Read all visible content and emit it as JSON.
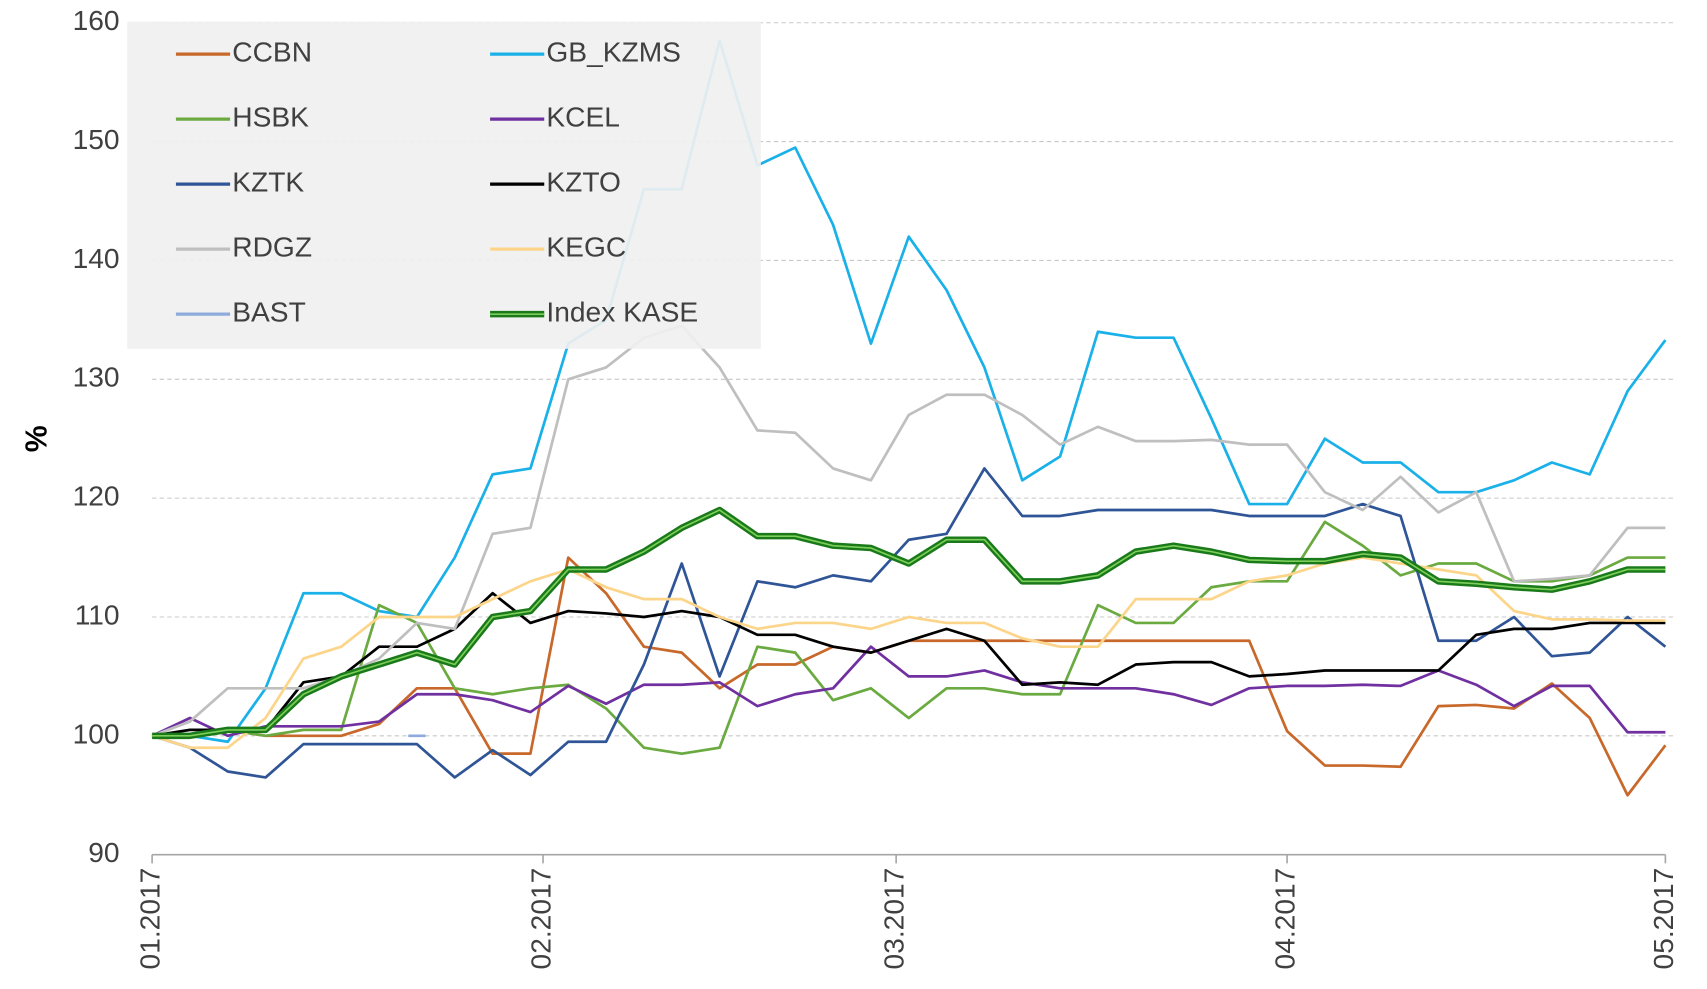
{
  "chart_data": {
    "type": "line",
    "y_label": "%",
    "x": [
      0,
      3,
      6,
      9,
      12,
      15,
      18,
      21,
      24,
      27,
      30,
      33,
      36,
      39,
      42,
      45,
      48,
      51,
      54,
      57,
      60,
      63,
      66,
      69,
      72,
      75,
      78,
      81,
      84,
      87,
      90,
      93,
      96,
      99,
      102,
      105,
      108,
      111,
      114,
      117,
      120
    ],
    "xlim": [
      0,
      120
    ],
    "xticks": [
      {
        "value": 0,
        "label": "01.2017"
      },
      {
        "value": 31,
        "label": "02.2017"
      },
      {
        "value": 59,
        "label": "03.2017"
      },
      {
        "value": 90,
        "label": "04.2017"
      },
      {
        "value": 120,
        "label": "05.2017"
      }
    ],
    "ylim": [
      90,
      160
    ],
    "yticks": [
      90,
      100,
      110,
      120,
      130,
      140,
      150,
      160
    ],
    "grid": true,
    "legend": "upper left",
    "series": [
      {
        "name": "CCBN",
        "color": "#c8682a",
        "values": [
          100,
          100,
          100.5,
          100,
          100,
          100,
          101,
          104,
          104,
          98.5,
          98.5,
          115,
          112,
          107.5,
          107,
          104,
          106,
          106,
          107.5,
          107,
          108,
          108,
          108,
          108,
          108,
          108,
          108,
          108,
          108,
          108,
          100.4,
          97.5,
          97.5,
          97.4,
          102.5,
          102.6,
          102.3,
          104.4,
          101.5,
          95,
          99.2
        ]
      },
      {
        "name": "GB_KZMS",
        "color": "#1ab0e8",
        "values": [
          100,
          100,
          99.5,
          104,
          112,
          112,
          110.5,
          110,
          115,
          122,
          122.5,
          133,
          135,
          146,
          146,
          158.5,
          148,
          149.5,
          143,
          133,
          142,
          137.5,
          131,
          121.5,
          123.5,
          134,
          133.5,
          133.5,
          126.7,
          119.5,
          119.5,
          125,
          123,
          123,
          120.5,
          120.5,
          121.5,
          123,
          122,
          129,
          133.3
        ]
      },
      {
        "name": "HSBK",
        "color": "#6aaa40",
        "values": [
          100,
          100,
          100.5,
          100,
          100.5,
          100.5,
          111,
          109.5,
          104,
          103.5,
          104,
          104.3,
          102.3,
          99,
          98.5,
          99,
          107.5,
          107,
          103,
          104,
          101.5,
          104,
          104,
          103.5,
          103.5,
          111,
          109.5,
          109.5,
          112.5,
          113,
          113,
          118,
          116,
          113.5,
          114.5,
          114.5,
          113,
          113,
          113.5,
          115,
          115
        ]
      },
      {
        "name": "KCEL",
        "color": "#7030a0",
        "values": [
          100,
          101.5,
          100,
          100.8,
          100.8,
          100.8,
          101.2,
          103.5,
          103.5,
          103,
          102,
          104.2,
          102.7,
          104.3,
          104.3,
          104.5,
          102.5,
          103.5,
          104,
          107.5,
          105,
          105,
          105.5,
          104.5,
          104,
          104,
          104,
          103.5,
          102.6,
          104,
          104.2,
          104.2,
          104.3,
          104.2,
          105.5,
          104.3,
          102.5,
          104.2,
          104.2,
          100.3,
          100.3
        ]
      },
      {
        "name": "KZTK",
        "color": "#2f5597",
        "values": [
          100,
          99,
          97,
          96.5,
          99.3,
          99.3,
          99.3,
          99.3,
          96.5,
          98.8,
          96.7,
          99.5,
          99.5,
          106,
          114.5,
          105,
          113,
          112.5,
          113.5,
          113,
          116.5,
          117,
          122.5,
          118.5,
          118.5,
          119,
          119,
          119,
          119,
          118.5,
          118.5,
          118.5,
          119.5,
          118.5,
          108,
          108,
          110,
          106.7,
          107,
          110,
          107.5
        ]
      },
      {
        "name": "KZTO",
        "color": "#000000",
        "values": [
          100,
          100.5,
          100.5,
          100.5,
          104.5,
          105,
          107.5,
          107.5,
          109,
          112,
          109.5,
          110.5,
          110.3,
          110,
          110.5,
          110,
          108.5,
          108.5,
          107.5,
          107,
          108,
          109,
          108,
          104.3,
          104.5,
          104.3,
          106,
          106.2,
          106.2,
          105,
          105.2,
          105.5,
          105.5,
          105.5,
          105.5,
          108.5,
          109,
          109,
          109.5,
          109.5,
          109.5
        ]
      },
      {
        "name": "RDGZ",
        "color": "#bfbfbf",
        "values": [
          100,
          101.2,
          104,
          104,
          104,
          105,
          106.5,
          109.5,
          109,
          117,
          117.5,
          130,
          131,
          133.5,
          134.5,
          131,
          125.7,
          125.5,
          122.5,
          121.5,
          127,
          128.7,
          128.7,
          127,
          124.5,
          126,
          124.8,
          124.8,
          124.9,
          124.5,
          124.5,
          120.5,
          119,
          121.8,
          118.8,
          120.5,
          113,
          113.2,
          113.5,
          117.5,
          117.5
        ]
      },
      {
        "name": "KEGC",
        "color": "#fdd58a",
        "values": [
          100,
          99,
          99,
          101.5,
          106.5,
          107.5,
          110,
          110,
          110,
          111.5,
          113,
          114,
          112.5,
          111.5,
          111.5,
          110,
          109,
          109.5,
          109.5,
          109,
          110,
          109.5,
          109.5,
          108.2,
          107.5,
          107.5,
          111.5,
          111.5,
          111.5,
          113,
          113.5,
          114.5,
          115,
          114.5,
          114,
          113.5,
          110.5,
          109.8,
          109.8,
          109.7,
          109.7
        ]
      },
      {
        "name": "BAST",
        "color": "#8faadc",
        "values": [
          null,
          null,
          null,
          null,
          null,
          null,
          null,
          100,
          null,
          null,
          null,
          null,
          null,
          null,
          null,
          null,
          null,
          null,
          null,
          null,
          null,
          null,
          null,
          null,
          null,
          null,
          null,
          null,
          null,
          null,
          null,
          null,
          null,
          null,
          null,
          null,
          null,
          null,
          null,
          null,
          null
        ]
      },
      {
        "name": "Index KASE",
        "color": "#1a7a1a",
        "values": [
          100,
          100,
          100.5,
          100.5,
          103.5,
          105,
          106,
          107,
          106,
          110,
          110.5,
          114,
          114,
          115.5,
          117.5,
          119,
          116.8,
          116.8,
          116,
          115.8,
          114.5,
          116.5,
          116.5,
          113,
          113,
          113.5,
          115.5,
          116,
          115.5,
          114.8,
          114.7,
          114.7,
          115.3,
          115,
          113,
          112.8,
          112.5,
          112.3,
          113,
          114,
          114
        ]
      }
    ]
  }
}
